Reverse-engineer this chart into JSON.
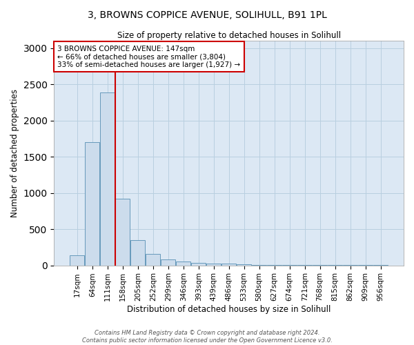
{
  "title": "3, BROWNS COPPICE AVENUE, SOLIHULL, B91 1PL",
  "subtitle": "Size of property relative to detached houses in Solihull",
  "xlabel": "Distribution of detached houses by size in Solihull",
  "ylabel": "Number of detached properties",
  "bar_labels": [
    "17sqm",
    "64sqm",
    "111sqm",
    "158sqm",
    "205sqm",
    "252sqm",
    "299sqm",
    "346sqm",
    "393sqm",
    "439sqm",
    "486sqm",
    "533sqm",
    "580sqm",
    "627sqm",
    "674sqm",
    "721sqm",
    "768sqm",
    "815sqm",
    "862sqm",
    "909sqm",
    "956sqm"
  ],
  "bar_values": [
    140,
    1700,
    2390,
    920,
    350,
    160,
    80,
    50,
    35,
    25,
    20,
    15,
    10,
    8,
    6,
    5,
    4,
    3,
    3,
    2,
    2
  ],
  "bar_color": "#ccdcec",
  "bar_edge_color": "#6699bb",
  "vline_x_index": 2.5,
  "annotation_line1": "3 BROWNS COPPICE AVENUE: 147sqm",
  "annotation_line2": "← 66% of detached houses are smaller (3,804)",
  "annotation_line3": "33% of semi-detached houses are larger (1,927) →",
  "annotation_box_color": "#ffffff",
  "annotation_box_edge": "#cc0000",
  "vline_color": "#cc0000",
  "grid_color": "#b8cfe0",
  "background_color": "#dce8f4",
  "ylim": [
    0,
    3100
  ],
  "yticks": [
    0,
    500,
    1000,
    1500,
    2000,
    2500,
    3000
  ],
  "footer_line1": "Contains HM Land Registry data © Crown copyright and database right 2024.",
  "footer_line2": "Contains public sector information licensed under the Open Government Licence v3.0."
}
